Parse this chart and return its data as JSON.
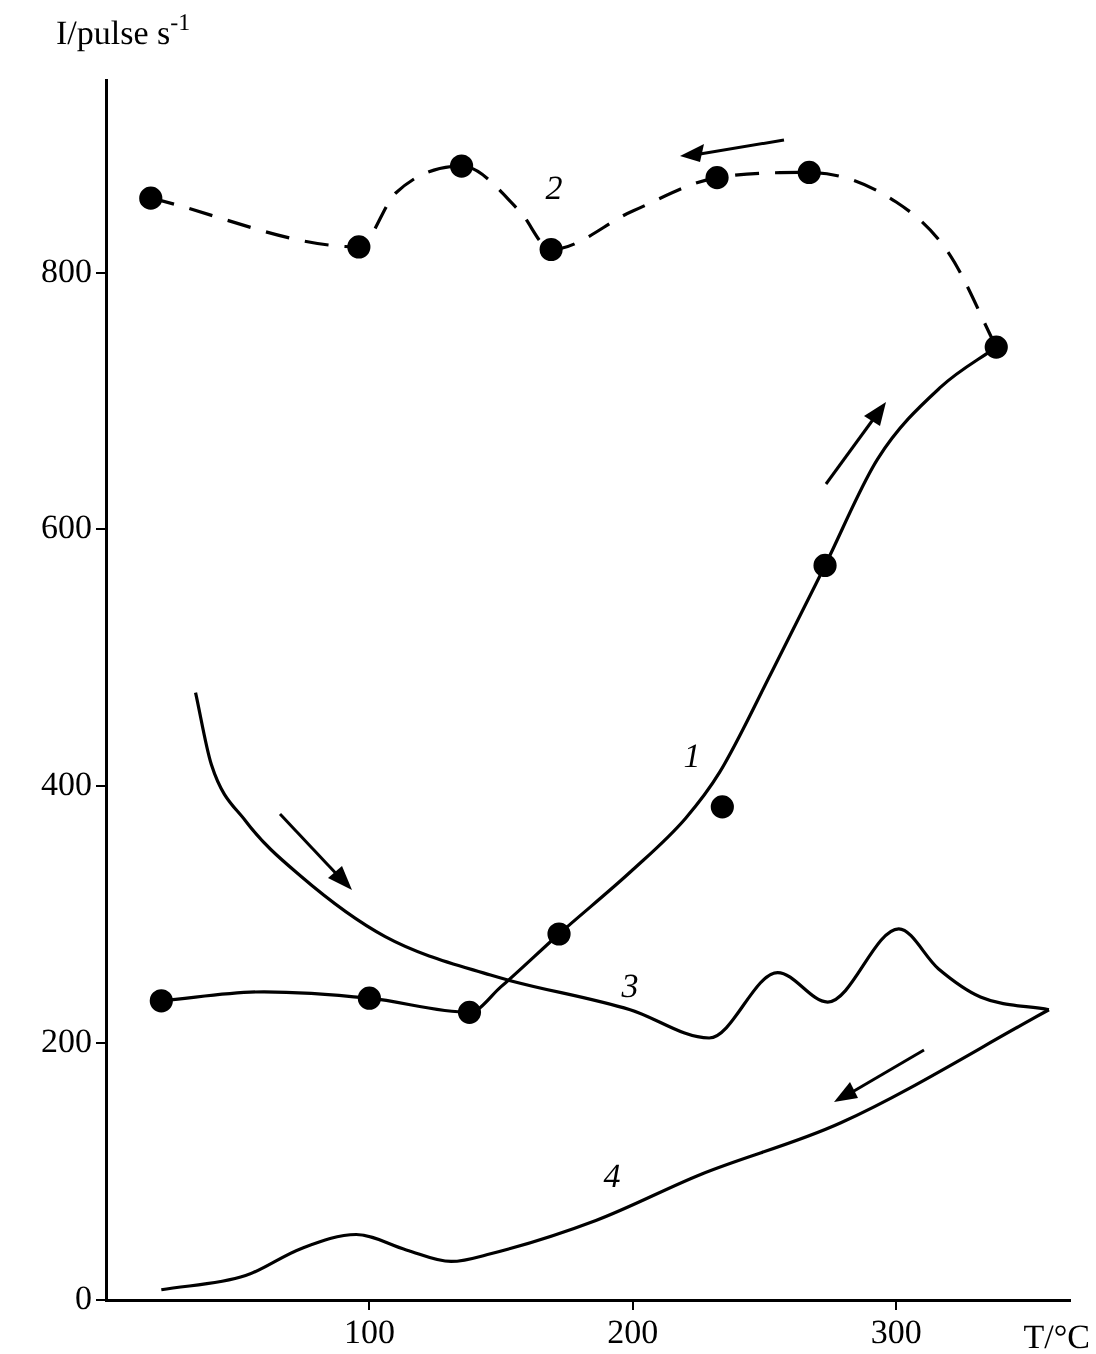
{
  "chart_data": {
    "type": "line",
    "xlabel": "T/°C",
    "ylabel": "I/pulse s$^{-1}$",
    "xlim": [
      0,
      366
    ],
    "ylim": [
      0,
      950
    ],
    "xticks": [
      100,
      200,
      300
    ],
    "yticks": [
      0,
      200,
      400,
      600,
      800
    ],
    "grid": false,
    "legend": false,
    "series": [
      {
        "type": "line",
        "color": "#000000",
        "marker": "none",
        "line_style": "solid",
        "x": [
          21,
          60,
          100,
          138,
          150,
          172,
          200,
          220,
          233,
          253,
          273,
          293,
          317,
          338
        ],
        "values": [
          233,
          240,
          235,
          224,
          244,
          285,
          335,
          375,
          411,
          490,
          572,
          655,
          711,
          742
        ]
      },
      {
        "type": "line",
        "color": "#000000",
        "marker": "none",
        "line_style": "dashed",
        "x": [
          17,
          96,
          110,
          135,
          157,
          169,
          200,
          232,
          267,
          300,
          320,
          338
        ],
        "values": [
          858,
          820,
          862,
          883,
          848,
          818,
          848,
          874,
          878,
          855,
          815,
          742
        ]
      },
      {
        "type": "scatter",
        "color": "#000000",
        "marker": "circle",
        "x": [
          17,
          96,
          135,
          169,
          232,
          267,
          338,
          21,
          100,
          138,
          172,
          234,
          273
        ],
        "values": [
          858,
          820,
          883,
          818,
          874,
          878,
          742,
          233,
          235,
          224,
          285,
          384,
          572
        ]
      },
      {
        "type": "line",
        "color": "#000000",
        "marker": "none",
        "line_style": "solid",
        "x": [
          34,
          40,
          53,
          74,
          106,
          146,
          199,
          229,
          255,
          274,
          301,
          316,
          332,
          358
        ],
        "values": [
          473,
          417,
          373,
          330,
          283,
          253,
          226,
          204,
          255,
          232,
          289,
          258,
          236,
          226
        ]
      },
      {
        "type": "line",
        "color": "#000000",
        "marker": "none",
        "line_style": "solid",
        "x": [
          21,
          53,
          74,
          95,
          114,
          131,
          146,
          186,
          226,
          279,
          358
        ],
        "values": [
          8,
          19,
          40,
          51,
          39,
          30,
          36,
          62,
          98,
          138,
          226
        ]
      }
    ],
    "annotations": [
      "1",
      "2",
      "3",
      "4"
    ]
  }
}
